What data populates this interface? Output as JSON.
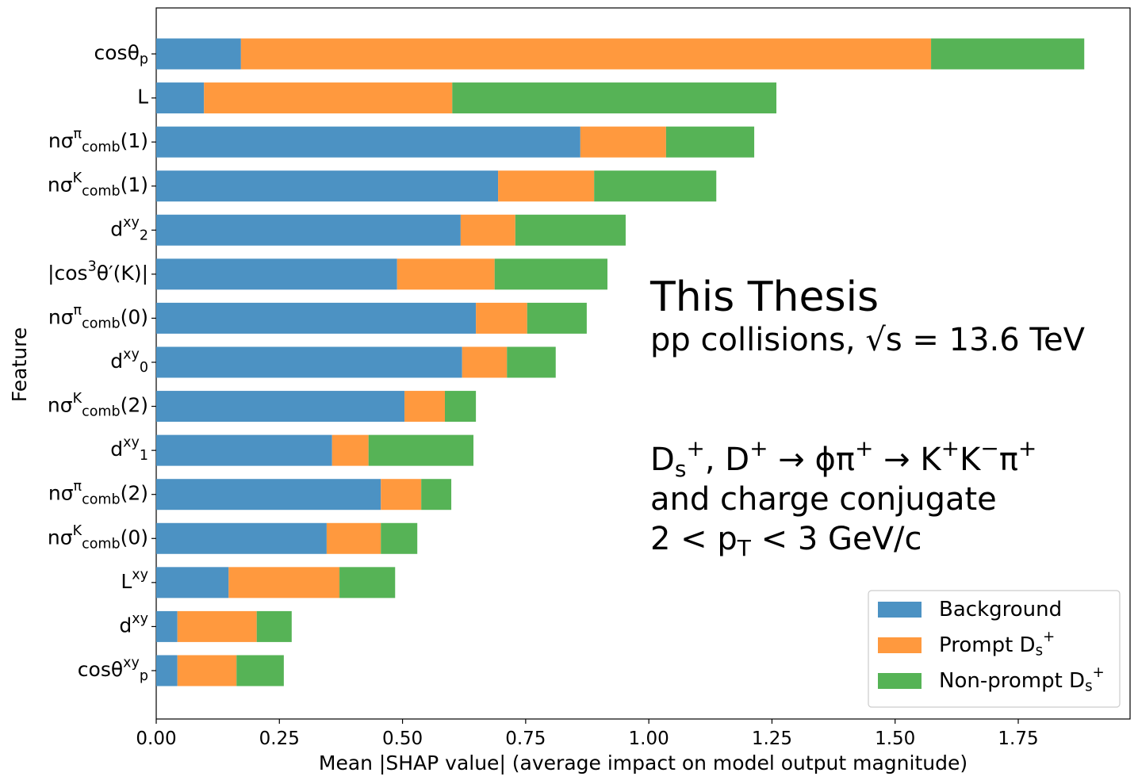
{
  "chart_data": {
    "type": "stacked-barh",
    "xlabel": "Mean |SHAP value| (average impact on model output magnitude)",
    "ylabel": "Feature",
    "categories": [
      "cosθ_{p}",
      "L",
      "nσ^{π}_{comb}(1)",
      "nσ^{K}_{comb}(1)",
      "d^{xy}_{2}",
      "|cos^{3}θ′(K)|",
      "nσ^{π}_{comb}(0)",
      "d^{xy}_{0}",
      "nσ^{K}_{comb}(2)",
      "d^{xy}_{1}",
      "nσ^{π}_{comb}(2)",
      "nσ^{K}_{comb}(0)",
      "L^{xy}",
      "d^{xy}",
      "cosθ^{xy}_{p}"
    ],
    "series": [
      {
        "name": "Background",
        "color": "#4c92c3",
        "values": [
          0.172,
          0.097,
          0.861,
          0.694,
          0.618,
          0.489,
          0.649,
          0.621,
          0.504,
          0.357,
          0.456,
          0.346,
          0.147,
          0.043,
          0.043
        ]
      },
      {
        "name": "Prompt D_{s}^{+}",
        "color": "#ff993e",
        "values": [
          1.401,
          0.504,
          0.174,
          0.195,
          0.111,
          0.198,
          0.104,
          0.091,
          0.082,
          0.074,
          0.082,
          0.11,
          0.225,
          0.161,
          0.12
        ]
      },
      {
        "name": "Non-prompt D_{s}^{+}",
        "color": "#56b356",
        "values": [
          0.311,
          0.658,
          0.179,
          0.248,
          0.224,
          0.229,
          0.121,
          0.099,
          0.063,
          0.213,
          0.061,
          0.074,
          0.113,
          0.071,
          0.096
        ]
      }
    ],
    "xlim": [
      0,
      1.977
    ],
    "xticks": [
      {
        "value": 0,
        "label": "0.00"
      },
      {
        "value": 0.25,
        "label": "0.25"
      },
      {
        "value": 0.5,
        "label": "0.50"
      },
      {
        "value": 0.75,
        "label": "0.75"
      },
      {
        "value": 1,
        "label": "1.00"
      },
      {
        "value": 1.25,
        "label": "1.25"
      },
      {
        "value": 1.5,
        "label": "1.50"
      },
      {
        "value": 1.75,
        "label": "1.75"
      }
    ],
    "legend": "lower right",
    "annotations": [
      "This Thesis",
      "pp collisions, √s = 13.6 TeV",
      "D_{s}^{+}, D^{+} → ϕπ^{+} → K^{+}K^{−}π^{+}",
      "and charge conjugate",
      "2 < p_{T} < 3 GeV/c"
    ]
  }
}
